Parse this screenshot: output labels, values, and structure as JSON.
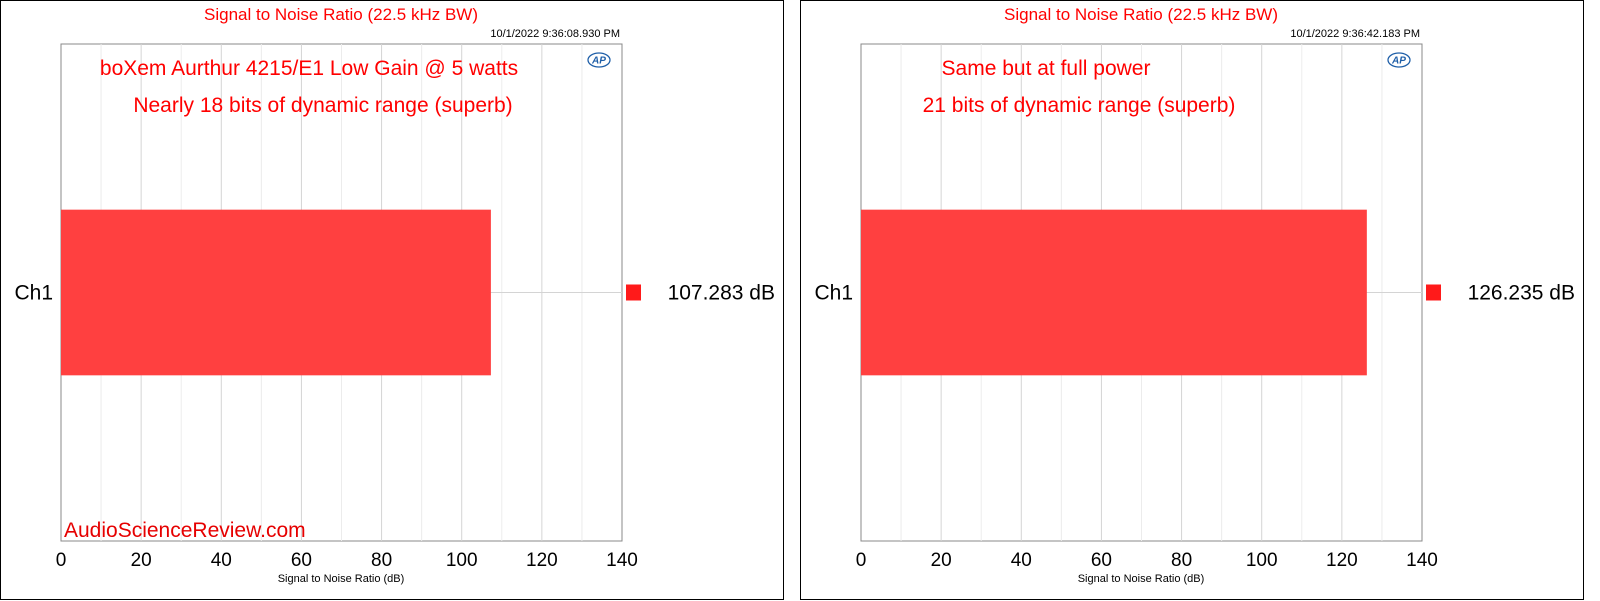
{
  "chart_data": [
    {
      "type": "bar",
      "title": "Signal to Noise Ratio (22.5 kHz BW)",
      "timestamp": "10/1/2022 9:36:08.930 PM",
      "categories": [
        "Ch1"
      ],
      "values": [
        107.283
      ],
      "value_labels": [
        "107.283  dB"
      ],
      "xlabel": "Signal to Noise Ratio (dB)",
      "xlim": [
        0,
        140
      ],
      "xticks": [
        0,
        20,
        40,
        60,
        80,
        100,
        120,
        140
      ],
      "grid": true,
      "orientation": "horizontal",
      "annotations": [
        "boXem Aurthur 4215/E1 Low Gain @ 5 watts",
        "Nearly 18 bits of dynamic range (superb)"
      ],
      "watermark": "AudioScienceReview.com",
      "logo": "AP",
      "bar_color": "#ff4040",
      "legend_marker_color": "#ff1a1a"
    },
    {
      "type": "bar",
      "title": "Signal to Noise Ratio (22.5 kHz BW)",
      "timestamp": "10/1/2022 9:36:42.183 PM",
      "categories": [
        "Ch1"
      ],
      "values": [
        126.235
      ],
      "value_labels": [
        "126.235  dB"
      ],
      "xlabel": "Signal to Noise Ratio (dB)",
      "xlim": [
        0,
        140
      ],
      "xticks": [
        0,
        20,
        40,
        60,
        80,
        100,
        120,
        140
      ],
      "grid": true,
      "orientation": "horizontal",
      "annotations": [
        "Same but at full power",
        "21 bits of dynamic range (superb)"
      ],
      "logo": "AP",
      "bar_color": "#ff4040",
      "legend_marker_color": "#ff1a1a"
    }
  ]
}
